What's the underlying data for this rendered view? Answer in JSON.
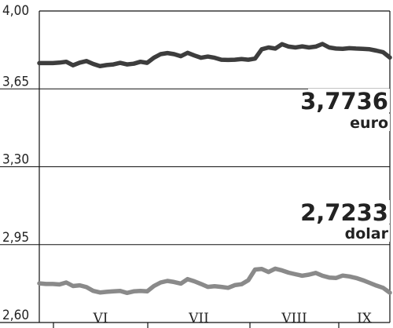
{
  "chart_data": {
    "type": "line",
    "ylim": [
      2.6,
      4.0
    ],
    "yticks": [
      "4,00",
      "3,65",
      "3,30",
      "2,95",
      "2,60"
    ],
    "ytick_values": [
      4.0,
      3.65,
      3.3,
      2.95,
      2.6
    ],
    "months": [
      "VI",
      "VII",
      "VIII",
      "IX"
    ],
    "grid": true,
    "series": [
      {
        "name": "euro",
        "value_label": "3,7736",
        "color": "#3d3d3d",
        "values": [
          3.766,
          3.766,
          3.766,
          3.768,
          3.772,
          3.756,
          3.768,
          3.775,
          3.762,
          3.752,
          3.757,
          3.76,
          3.767,
          3.76,
          3.763,
          3.772,
          3.767,
          3.79,
          3.806,
          3.811,
          3.806,
          3.797,
          3.812,
          3.8,
          3.79,
          3.795,
          3.79,
          3.781,
          3.78,
          3.781,
          3.784,
          3.781,
          3.786,
          3.828,
          3.836,
          3.831,
          3.851,
          3.84,
          3.836,
          3.841,
          3.836,
          3.84,
          3.852,
          3.836,
          3.831,
          3.83,
          3.833,
          3.831,
          3.83,
          3.828,
          3.822,
          3.815,
          3.791
        ]
      },
      {
        "name": "dolar",
        "value_label": "2,7233",
        "color": "#8a8a8a",
        "values": [
          2.776,
          2.773,
          2.773,
          2.771,
          2.78,
          2.764,
          2.767,
          2.759,
          2.742,
          2.735,
          2.738,
          2.74,
          2.742,
          2.733,
          2.74,
          2.742,
          2.74,
          2.764,
          2.78,
          2.787,
          2.782,
          2.775,
          2.795,
          2.785,
          2.773,
          2.76,
          2.763,
          2.76,
          2.756,
          2.768,
          2.772,
          2.79,
          2.838,
          2.841,
          2.827,
          2.842,
          2.834,
          2.824,
          2.817,
          2.81,
          2.815,
          2.823,
          2.81,
          2.802,
          2.8,
          2.811,
          2.807,
          2.8,
          2.79,
          2.778,
          2.766,
          2.756,
          2.734
        ]
      }
    ]
  }
}
